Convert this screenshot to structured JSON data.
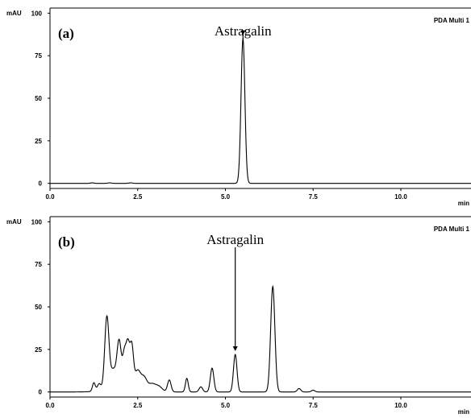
{
  "chart_data": [
    {
      "type": "line",
      "panel_label": "(a)",
      "channel": "PDA Multi 1",
      "xlabel": "min",
      "ylabel": "mAU",
      "xlim": [
        0,
        12
      ],
      "ylim": [
        -3,
        103
      ],
      "xticks": [
        0,
        2.5,
        5,
        7.5,
        10
      ],
      "xtick_labels": [
        "0.0",
        "2.5",
        "5.0",
        "7.5",
        "10.0"
      ],
      "yticks": [
        0,
        25,
        50,
        75,
        100
      ],
      "ytick_labels": [
        "0",
        "25",
        "50",
        "75",
        "100"
      ],
      "grid": false,
      "legend": "none",
      "baseline": 0,
      "peaks": [
        {
          "rt": 1.2,
          "height": 0.3,
          "width": 0.05
        },
        {
          "rt": 1.7,
          "height": 0.3,
          "width": 0.05
        },
        {
          "rt": 2.3,
          "height": 0.3,
          "width": 0.05
        },
        {
          "rt": 5.5,
          "height": 85,
          "width": 0.055
        }
      ],
      "annotation": {
        "text": "Astragalin",
        "x": 5.5,
        "arrow_tip_y": 87
      }
    },
    {
      "type": "line",
      "panel_label": "(b)",
      "channel": "PDA Multi 1",
      "xlabel": "min",
      "ylabel": "mAU",
      "xlim": [
        0,
        12
      ],
      "ylim": [
        -3,
        103
      ],
      "xticks": [
        0,
        2.5,
        5,
        7.5,
        10
      ],
      "xtick_labels": [
        "0.0",
        "2.5",
        "5.0",
        "7.5",
        "10.0"
      ],
      "yticks": [
        0,
        25,
        50,
        75,
        100
      ],
      "ytick_labels": [
        "0",
        "25",
        "50",
        "75",
        "100"
      ],
      "grid": false,
      "legend": "none",
      "baseline": 0,
      "peaks": [
        {
          "rt": 1.25,
          "height": 5,
          "width": 0.04
        },
        {
          "rt": 1.4,
          "height": 4,
          "width": 0.05
        },
        {
          "rt": 1.62,
          "height": 42,
          "width": 0.06
        },
        {
          "rt": 1.8,
          "height": 10,
          "width": 0.08
        },
        {
          "rt": 1.97,
          "height": 26,
          "width": 0.06
        },
        {
          "rt": 2.12,
          "height": 18,
          "width": 0.05
        },
        {
          "rt": 2.22,
          "height": 23,
          "width": 0.05
        },
        {
          "rt": 2.33,
          "height": 23,
          "width": 0.05
        },
        {
          "rt": 2.1,
          "height": 4,
          "width": 0.4
        },
        {
          "rt": 2.5,
          "height": 10,
          "width": 0.08
        },
        {
          "rt": 2.68,
          "height": 7,
          "width": 0.08
        },
        {
          "rt": 2.9,
          "height": 4,
          "width": 0.1
        },
        {
          "rt": 3.1,
          "height": 3,
          "width": 0.1
        },
        {
          "rt": 3.4,
          "height": 7,
          "width": 0.05
        },
        {
          "rt": 3.9,
          "height": 8,
          "width": 0.04
        },
        {
          "rt": 4.3,
          "height": 3,
          "width": 0.05
        },
        {
          "rt": 4.62,
          "height": 14,
          "width": 0.05
        },
        {
          "rt": 5.28,
          "height": 22,
          "width": 0.05
        },
        {
          "rt": 6.35,
          "height": 62,
          "width": 0.06
        },
        {
          "rt": 7.1,
          "height": 2,
          "width": 0.05
        },
        {
          "rt": 7.5,
          "height": 1,
          "width": 0.05
        }
      ],
      "annotation": {
        "text": "Astragalin",
        "x": 5.28,
        "arrow_tip_y": 24
      }
    }
  ]
}
